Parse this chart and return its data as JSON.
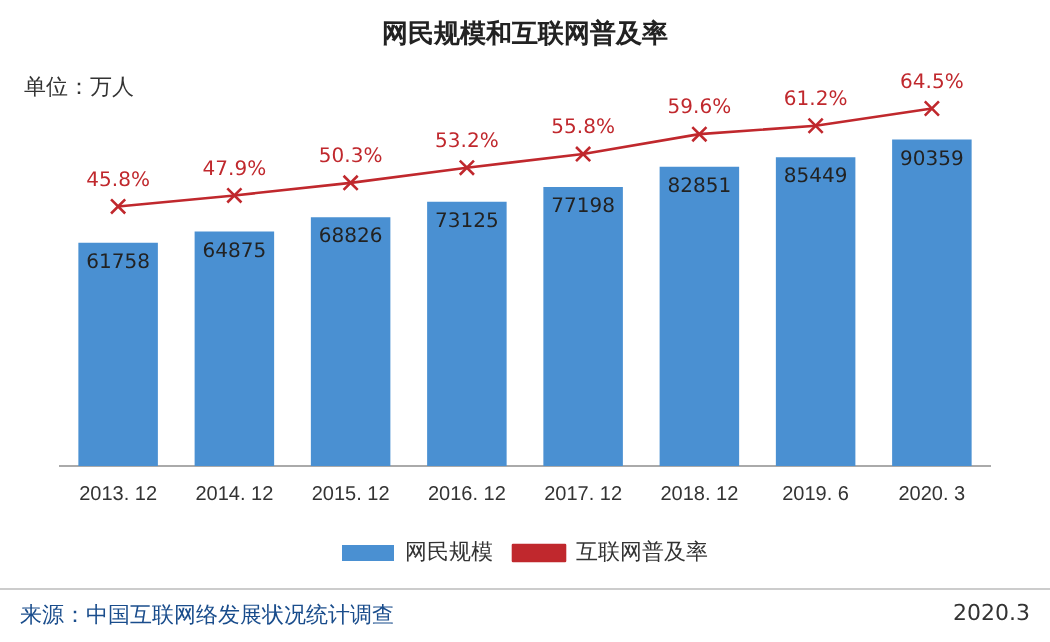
{
  "chart_data": {
    "type": "bar",
    "title": "网民规模和互联网普及率",
    "categories": [
      "2013. 12",
      "2014. 12",
      "2015. 12",
      "2016. 12",
      "2017. 12",
      "2018. 12",
      "2019. 6",
      "2020. 3"
    ],
    "series": [
      {
        "name": "网民规模",
        "color": "#4a90d2",
        "values": [
          61758,
          64875,
          68826,
          73125,
          77198,
          82851,
          85449,
          90359
        ]
      },
      {
        "name": "互联网普及率",
        "type": "line",
        "axis": "y2",
        "color": "#c0282d",
        "marker": "cross",
        "values": [
          45.8,
          47.9,
          50.3,
          53.2,
          55.8,
          59.6,
          61.2,
          64.5
        ],
        "value_labels": [
          "45.8%",
          "47.9%",
          "50.3%",
          "53.2%",
          "55.8%",
          "59.6%",
          "61.2%",
          "64.5%"
        ]
      }
    ],
    "data_labels": true,
    "legend": "bottom",
    "grid": false,
    "annotations": [
      "单位：万人",
      "来源：中国互联网络发展状况统计调查",
      "2020.3"
    ]
  }
}
